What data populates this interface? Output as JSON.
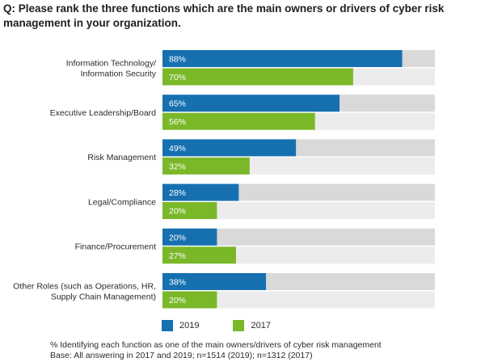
{
  "question": "Q: Please rank the three functions which are the main owners or drivers of cyber risk management in your organization.",
  "footnote": {
    "line1": "% Identifying each function as one of the main owners/drivers of cyber risk management",
    "line2": "Base: All answering in 2017 and 2019; n=1514 (2019); n=1312 (2017)"
  },
  "chart_data": {
    "type": "bar",
    "orientation": "horizontal",
    "xlim": [
      0,
      100
    ],
    "categories": [
      [
        "Information Technology/",
        "Information Security"
      ],
      [
        "Executive Leadership/Board"
      ],
      [
        "Risk Management"
      ],
      [
        "Legal/Compliance"
      ],
      [
        "Finance/Procurement"
      ],
      [
        "Other Roles (such as Operations, HR,",
        "Supply Chain Management)"
      ]
    ],
    "series": [
      {
        "name": "2019",
        "color": "#1670b0",
        "track_color": "#d9d9d9",
        "values": [
          88,
          65,
          49,
          28,
          20,
          38
        ]
      },
      {
        "name": "2017",
        "color": "#7ab829",
        "track_color": "#ececec",
        "values": [
          70,
          56,
          32,
          20,
          27,
          20
        ]
      }
    ],
    "value_suffix": "%",
    "legend_position": "bottom",
    "grid": false
  }
}
